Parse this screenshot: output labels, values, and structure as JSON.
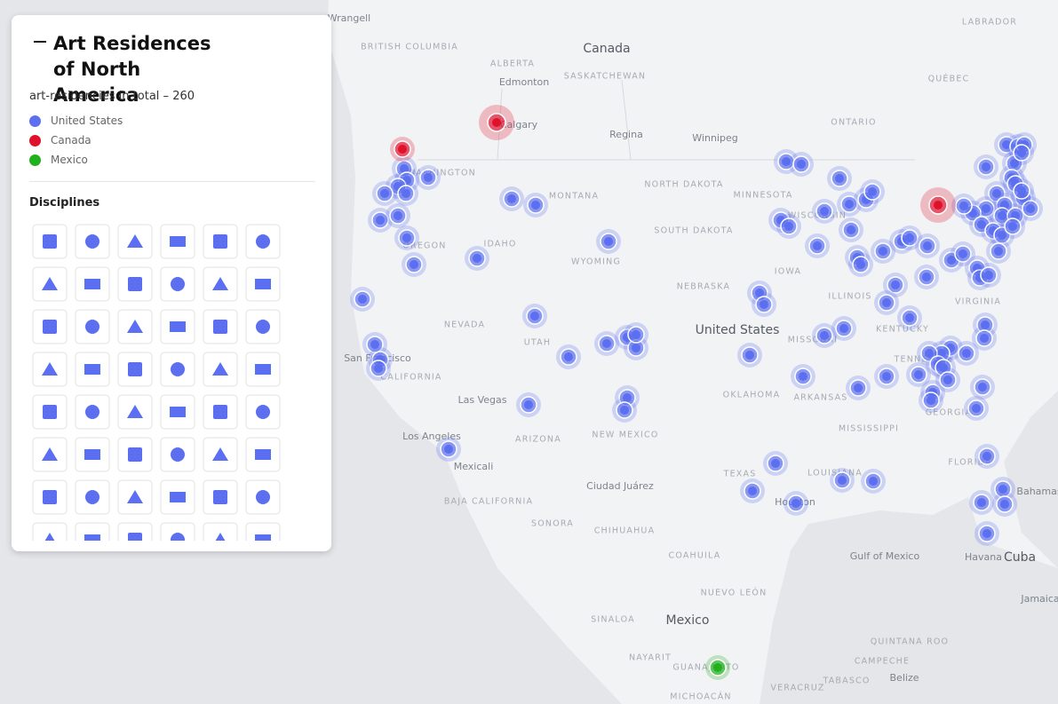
{
  "panel": {
    "title": "Art Residences of North America",
    "total_label": "art-residencies in total –",
    "total": 260,
    "legend": [
      {
        "name": "United States",
        "color": "#5b6ff0"
      },
      {
        "name": "Canada",
        "color": "#e0112b"
      },
      {
        "name": "Mexico",
        "color": "#22b11e"
      }
    ],
    "disciplines_heading": "Disciplines"
  },
  "map": {
    "labels": [
      "Wrangell",
      "BRITISH COLUMBIA",
      "Canada",
      "ALBERTA",
      "Edmonton",
      "SASKATCHEWAN",
      "QUÉBEC",
      "LABRADOR",
      "ONTARIO",
      "Calgary",
      "Regina",
      "Winnipeg",
      "NORTH DAKOTA",
      "MINNESOTA",
      "MONTANA",
      "WASHINGTON",
      "SOUTH DAKOTA",
      "WISCONSIN",
      "IDAHO",
      "OREGON",
      "WYOMING",
      "IOWA",
      "NEBRASKA",
      "ILLINOIS",
      "NEVADA",
      "UTAH",
      "United States",
      "MISSOURI",
      "KENTUCKY",
      "VIRGINIA",
      "CALIFORNIA",
      "San Francisco",
      "TENNESSEE",
      "OKLAHOMA",
      "ARKANSAS",
      "Las Vegas",
      "MISSISSIPPI",
      "GEORGIA",
      "Los Angeles",
      "ARIZONA",
      "NEW MEXICO",
      "Mexicali",
      "TEXAS",
      "LOUISIANA",
      "Ciudad Juárez",
      "Houston",
      "BAJA CALIFORNIA",
      "SONORA",
      "CHIHUAHUA",
      "COAHUILA",
      "Gulf of Mexico",
      "Havana",
      "Cuba",
      "Mexico",
      "NUEVO LEÓN",
      "SINALOA",
      "NAYARIT",
      "GUANAJUATO",
      "QUINTANA ROO",
      "CAMPECHE",
      "Belize",
      "Jamaica",
      "Bahamas",
      "MICHOACÁN",
      "VERACRUZ",
      "TABASCO",
      "FLORIDA"
    ]
  }
}
